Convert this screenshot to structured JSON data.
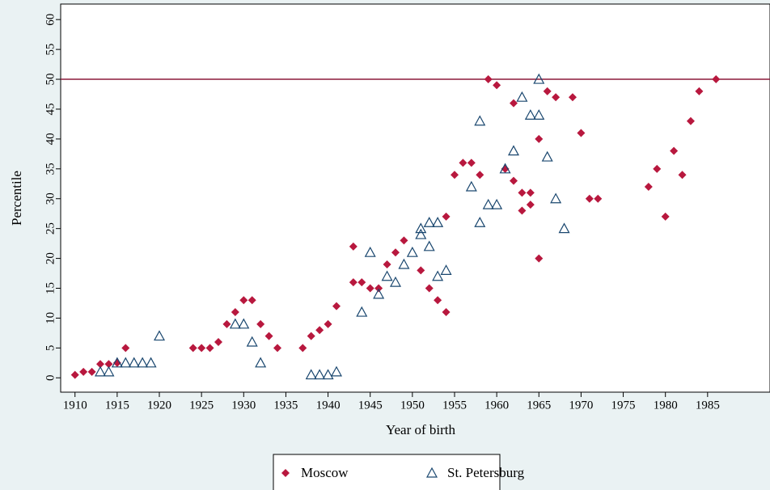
{
  "chart_data": {
    "type": "scatter",
    "x_label": "Year of birth",
    "y_label": "Percentile",
    "xlim": [
      1908.3,
      1992.4
    ],
    "ylim": [
      -2.4,
      62.6
    ],
    "xticks": [
      1910,
      1915,
      1920,
      1925,
      1930,
      1935,
      1940,
      1945,
      1950,
      1955,
      1960,
      1965,
      1970,
      1975,
      1980,
      1985
    ],
    "yticks": [
      0,
      5,
      10,
      15,
      20,
      25,
      30,
      35,
      40,
      45,
      50,
      55,
      60
    ],
    "hline": 50,
    "hline_color": "#8b1a3a",
    "legend": "bottom",
    "series": [
      {
        "name": "Moscow",
        "color": "#b8183e",
        "marker": "diamond",
        "x": [
          1910,
          1911,
          1912,
          1913,
          1914,
          1915,
          1916,
          1924,
          1925,
          1926,
          1927,
          1928,
          1929,
          1930,
          1931,
          1932,
          1933,
          1934,
          1937,
          1938,
          1939,
          1940,
          1941,
          1943,
          1943,
          1944,
          1945,
          1946,
          1947,
          1948,
          1949,
          1951,
          1952,
          1953,
          1954,
          1954,
          1955,
          1956,
          1957,
          1958,
          1959,
          1960,
          1961,
          1962,
          1962,
          1963,
          1963,
          1964,
          1964,
          1965,
          1965,
          1966,
          1967,
          1969,
          1970,
          1971,
          1972,
          1978,
          1979,
          1980,
          1981,
          1982,
          1983,
          1984,
          1986
        ],
        "values": [
          0.5,
          1,
          1,
          2.3,
          2.3,
          2.5,
          5,
          5,
          5,
          5,
          6,
          9,
          11,
          13,
          13,
          9,
          7,
          5,
          5,
          7,
          8,
          9,
          12,
          22,
          16,
          16,
          15,
          15,
          19,
          21,
          23,
          18,
          15,
          13,
          11,
          27,
          34,
          36,
          36,
          34,
          50,
          49,
          35,
          33,
          46,
          31,
          28,
          29,
          31,
          40,
          20,
          48,
          47,
          47,
          41,
          30,
          30,
          32,
          35,
          27,
          38,
          34,
          43,
          48,
          50
        ]
      },
      {
        "name": "St. Petersburg",
        "color": "#1a476f",
        "marker": "triangle",
        "x": [
          1913,
          1914,
          1915,
          1916,
          1917,
          1918,
          1919,
          1920,
          1929,
          1930,
          1931,
          1932,
          1938,
          1939,
          1940,
          1941,
          1944,
          1945,
          1946,
          1947,
          1948,
          1949,
          1950,
          1951,
          1951,
          1952,
          1952,
          1953,
          1953,
          1954,
          1957,
          1958,
          1958,
          1959,
          1960,
          1961,
          1962,
          1963,
          1964,
          1965,
          1965,
          1966,
          1967,
          1968
        ],
        "values": [
          1,
          1,
          2.5,
          2.5,
          2.5,
          2.5,
          2.5,
          7,
          9,
          9,
          6,
          2.5,
          0.5,
          0.5,
          0.5,
          1,
          11,
          21,
          14,
          17,
          16,
          19,
          21,
          25,
          24,
          22,
          26,
          26,
          17,
          18,
          32,
          43,
          26,
          29,
          29,
          35,
          38,
          47,
          44,
          44,
          50,
          37,
          30,
          25
        ]
      }
    ]
  }
}
